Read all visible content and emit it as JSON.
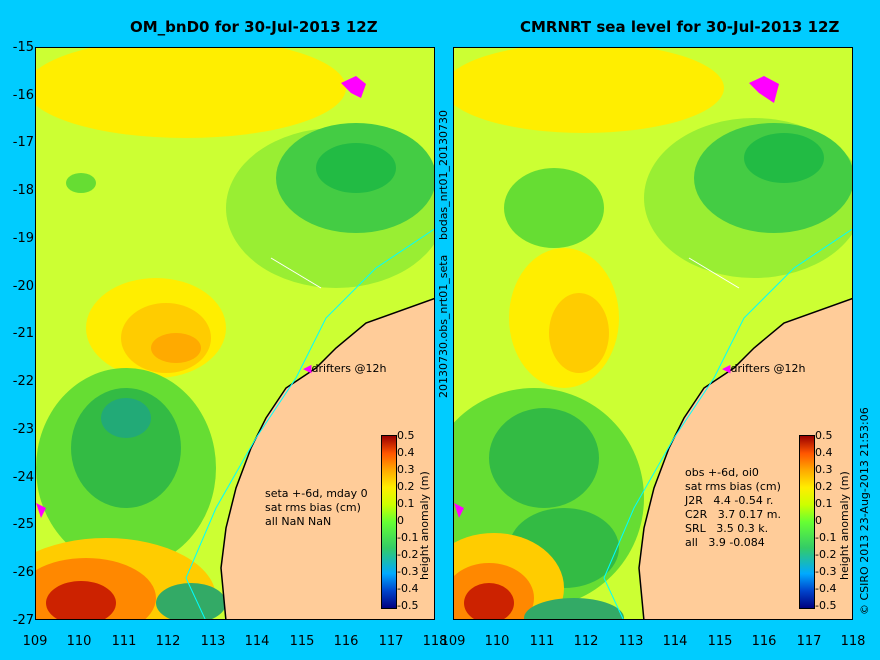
{
  "left_panel": {
    "title": "OM_bnD0 for 30-Jul-2013 12Z",
    "drifters_label": "drifters @12h",
    "stats": [
      "seta +-6d, mday 0",
      "sat rms bias (cm)",
      "all NaN NaN"
    ]
  },
  "right_panel": {
    "title": "CMRNRT sea level  for 30-Jul-2013 12Z",
    "drifters_label": "drifters @12h",
    "stats": [
      "obs +-6d, oi0",
      "sat rms bias (cm)",
      "J2R   4.4 -0.54 r.",
      "C2R   3.7 0.17 m.",
      "SRL   3.5 0.3 k.",
      "all   3.9 -0.084"
    ]
  },
  "y_axis_ticks": [
    "-15",
    "-16",
    "-17",
    "-18",
    "-19",
    "-20",
    "-21",
    "-22",
    "-23",
    "-24",
    "-25",
    "-26",
    "-27"
  ],
  "x_axis_ticks": [
    "109",
    "110",
    "111",
    "112",
    "113",
    "114",
    "115",
    "116",
    "117",
    "118"
  ],
  "colorbar": {
    "title": "height anomaly (m)",
    "ticks": [
      "0.5",
      "0.4",
      "0.3",
      "0.2",
      "0.1",
      "0",
      "-0.1",
      "-0.2",
      "-0.3",
      "-0.4",
      "-0.5"
    ]
  },
  "side_text_top": "bodas_nrt01_20130730",
  "side_text_bottom": "20130730.obs_nrt01_seta",
  "credit": "© CSIRO 2013   23-Aug-2013 21:53:06",
  "colors": {
    "background": "#00ccff",
    "land": "#ffcc99",
    "coast_line": "#00ffff",
    "drifter": "#ff00ff"
  }
}
